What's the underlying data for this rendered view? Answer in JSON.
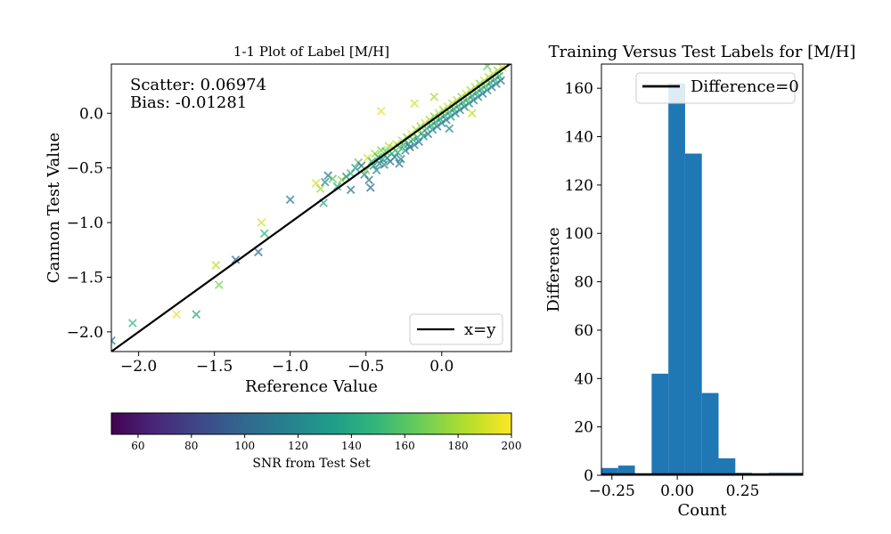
{
  "figure": {
    "scatter_title": "1-1 Plot of Label [M/H]",
    "hist_title": "Training Versus Test Labels for [M/H]",
    "stats": {
      "scatter": "Scatter: 0.06974",
      "bias": "Bias: -0.01281"
    },
    "colorbar": {
      "label": "SNR from Test Set",
      "range": [
        50,
        200
      ],
      "ticks": [
        "60",
        "80",
        "100",
        "120",
        "140",
        "160",
        "180",
        "200"
      ],
      "colormap": [
        "#440154",
        "#482878",
        "#3e4989",
        "#31688e",
        "#26828e",
        "#1f9e89",
        "#35b779",
        "#6ece58",
        "#b5de2b",
        "#fde725"
      ]
    },
    "colors": {
      "line": "#000000",
      "hist_bar": "#1f77b4"
    }
  },
  "chart_data": [
    {
      "type": "scatter",
      "title": "1-1 Plot of Label [M/H]",
      "xlabel": "Reference Value",
      "ylabel": "Cannon Test Value",
      "xlim": [
        -2.18,
        0.46
      ],
      "ylim": [
        -2.18,
        0.45
      ],
      "x_ticks": [
        "−2.0",
        "−1.5",
        "−1.0",
        "−0.5",
        "0.0"
      ],
      "x_tick_values": [
        -2.0,
        -1.5,
        -1.0,
        -0.5,
        0.0
      ],
      "y_ticks": [
        "−2.0",
        "−1.5",
        "−1.0",
        "−0.5",
        "0.0"
      ],
      "y_tick_values": [
        -2.0,
        -1.5,
        -1.0,
        -0.5,
        0.0
      ],
      "legend": {
        "entries": [
          "x=y"
        ],
        "placement": "lower-right"
      },
      "reference_line": {
        "name": "x=y",
        "slope": 1,
        "intercept": 0
      },
      "points": [
        [
          -2.18,
          -2.08,
          110
        ],
        [
          -2.04,
          -1.92,
          150
        ],
        [
          -1.75,
          -1.84,
          195
        ],
        [
          -1.62,
          -1.84,
          140
        ],
        [
          -1.49,
          -1.39,
          185
        ],
        [
          -1.47,
          -1.57,
          170
        ],
        [
          -1.36,
          -1.34,
          100
        ],
        [
          -1.21,
          -1.27,
          105
        ],
        [
          -1.19,
          -1.0,
          190
        ],
        [
          -1.17,
          -1.1,
          150
        ],
        [
          -1.0,
          -0.79,
          110
        ],
        [
          -0.83,
          -0.64,
          190
        ],
        [
          -0.8,
          -0.69,
          180
        ],
        [
          -0.78,
          -0.82,
          140
        ],
        [
          -0.77,
          -0.63,
          120
        ],
        [
          -0.75,
          -0.57,
          110
        ],
        [
          -0.72,
          -0.6,
          160
        ],
        [
          -0.69,
          -0.67,
          140
        ],
        [
          -0.66,
          -0.61,
          175
        ],
        [
          -0.63,
          -0.58,
          120
        ],
        [
          -0.6,
          -0.55,
          150
        ],
        [
          -0.57,
          -0.5,
          130
        ],
        [
          -0.55,
          -0.45,
          160
        ],
        [
          -0.53,
          -0.48,
          100
        ],
        [
          -0.51,
          -0.56,
          120
        ],
        [
          -0.5,
          -0.52,
          170
        ],
        [
          -0.49,
          -0.41,
          190
        ],
        [
          -0.48,
          -0.61,
          110
        ],
        [
          -0.47,
          -0.68,
          100
        ],
        [
          -0.46,
          -0.44,
          150
        ],
        [
          -0.45,
          -0.48,
          130
        ],
        [
          -0.44,
          -0.37,
          180
        ],
        [
          -0.43,
          -0.52,
          120
        ],
        [
          -0.42,
          -0.4,
          150
        ],
        [
          -0.41,
          -0.46,
          110
        ],
        [
          -0.4,
          -0.34,
          170
        ],
        [
          -0.39,
          -0.42,
          140
        ],
        [
          -0.38,
          -0.47,
          120
        ],
        [
          -0.37,
          -0.35,
          160
        ],
        [
          -0.36,
          -0.41,
          130
        ],
        [
          -0.35,
          -0.3,
          185
        ],
        [
          -0.34,
          -0.44,
          110
        ],
        [
          -0.33,
          -0.37,
          150
        ],
        [
          -0.32,
          -0.32,
          175
        ],
        [
          -0.31,
          -0.4,
          120
        ],
        [
          -0.3,
          -0.28,
          190
        ],
        [
          -0.29,
          -0.36,
          140
        ],
        [
          -0.28,
          -0.31,
          160
        ],
        [
          -0.27,
          -0.42,
          110
        ],
        [
          -0.26,
          -0.25,
          180
        ],
        [
          -0.25,
          -0.29,
          150
        ],
        [
          -0.24,
          -0.34,
          120
        ],
        [
          -0.23,
          -0.22,
          170
        ],
        [
          -0.22,
          -0.28,
          130
        ],
        [
          -0.21,
          -0.31,
          100
        ],
        [
          -0.2,
          -0.19,
          195
        ],
        [
          -0.19,
          -0.24,
          150
        ],
        [
          -0.18,
          -0.29,
          120
        ],
        [
          -0.17,
          -0.15,
          180
        ],
        [
          -0.16,
          -0.22,
          140
        ],
        [
          -0.15,
          -0.26,
          110
        ],
        [
          -0.14,
          -0.12,
          175
        ],
        [
          -0.13,
          -0.18,
          160
        ],
        [
          -0.12,
          -0.21,
          125
        ],
        [
          -0.11,
          -0.09,
          190
        ],
        [
          -0.1,
          -0.14,
          150
        ],
        [
          -0.09,
          -0.19,
          115
        ],
        [
          -0.08,
          -0.06,
          180
        ],
        [
          -0.07,
          -0.11,
          140
        ],
        [
          -0.06,
          -0.15,
          120
        ],
        [
          -0.05,
          -0.03,
          170
        ],
        [
          -0.04,
          -0.08,
          150
        ],
        [
          -0.03,
          -0.12,
          110
        ],
        [
          -0.02,
          0.0,
          185
        ],
        [
          -0.01,
          -0.05,
          130
        ],
        [
          0.0,
          -0.09,
          120
        ],
        [
          0.01,
          0.03,
          175
        ],
        [
          0.02,
          -0.02,
          145
        ],
        [
          0.03,
          -0.06,
          110
        ],
        [
          0.04,
          0.06,
          190
        ],
        [
          0.05,
          0.01,
          150
        ],
        [
          0.06,
          -0.03,
          125
        ],
        [
          0.07,
          0.09,
          180
        ],
        [
          0.08,
          0.04,
          140
        ],
        [
          0.09,
          0.0,
          115
        ],
        [
          0.1,
          0.12,
          185
        ],
        [
          0.11,
          0.07,
          155
        ],
        [
          0.12,
          0.03,
          120
        ],
        [
          0.13,
          0.15,
          175
        ],
        [
          0.14,
          0.1,
          145
        ],
        [
          0.15,
          0.06,
          110
        ],
        [
          0.16,
          0.18,
          190
        ],
        [
          0.17,
          0.13,
          160
        ],
        [
          0.18,
          0.09,
          125
        ],
        [
          0.19,
          0.21,
          180
        ],
        [
          0.2,
          0.16,
          140
        ],
        [
          0.21,
          0.12,
          115
        ],
        [
          0.22,
          0.24,
          185
        ],
        [
          0.23,
          0.19,
          150
        ],
        [
          0.24,
          0.15,
          120
        ],
        [
          0.25,
          0.27,
          175
        ],
        [
          0.26,
          0.22,
          145
        ],
        [
          0.27,
          0.18,
          110
        ],
        [
          0.28,
          0.3,
          190
        ],
        [
          0.29,
          0.25,
          160
        ],
        [
          0.3,
          0.21,
          125
        ],
        [
          0.31,
          0.33,
          180
        ],
        [
          0.32,
          0.28,
          140
        ],
        [
          0.33,
          0.24,
          115
        ],
        [
          0.34,
          0.36,
          185
        ],
        [
          0.35,
          0.31,
          150
        ],
        [
          0.36,
          0.27,
          120
        ],
        [
          0.37,
          0.39,
          175
        ],
        [
          0.38,
          0.34,
          145
        ],
        [
          0.39,
          0.3,
          110
        ],
        [
          0.4,
          0.42,
          190
        ],
        [
          -0.4,
          0.02,
          195
        ],
        [
          -0.18,
          0.09,
          190
        ],
        [
          0.2,
          0.0,
          185
        ],
        [
          -0.05,
          0.15,
          180
        ],
        [
          -0.6,
          -0.7,
          110
        ],
        [
          -0.28,
          -0.46,
          115
        ],
        [
          0.05,
          -0.14,
          120
        ],
        [
          0.3,
          0.43,
          165
        ]
      ]
    },
    {
      "type": "bar",
      "title": "Training Versus Test Labels for [M/H]",
      "xlabel": "Count",
      "ylabel": "Difference",
      "xlim": [
        -0.29,
        0.48
      ],
      "ylim": [
        0,
        170
      ],
      "x_ticks": [
        "−0.25",
        "0.00",
        "0.25"
      ],
      "x_tick_values": [
        -0.25,
        0.0,
        0.25
      ],
      "y_ticks": [
        "0",
        "20",
        "40",
        "60",
        "80",
        "100",
        "120",
        "140",
        "160"
      ],
      "y_tick_values": [
        0,
        20,
        40,
        60,
        80,
        100,
        120,
        140,
        160
      ],
      "bin_edges": [
        -0.29,
        -0.226,
        -0.162,
        -0.098,
        -0.034,
        0.03,
        0.094,
        0.158,
        0.222,
        0.286,
        0.35,
        0.414,
        0.478
      ],
      "values": [
        3,
        4,
        0,
        42,
        162,
        133,
        34,
        7,
        1,
        0,
        1,
        1
      ],
      "legend": {
        "entries": [
          "Difference=0"
        ],
        "placement": "top-right"
      }
    }
  ]
}
